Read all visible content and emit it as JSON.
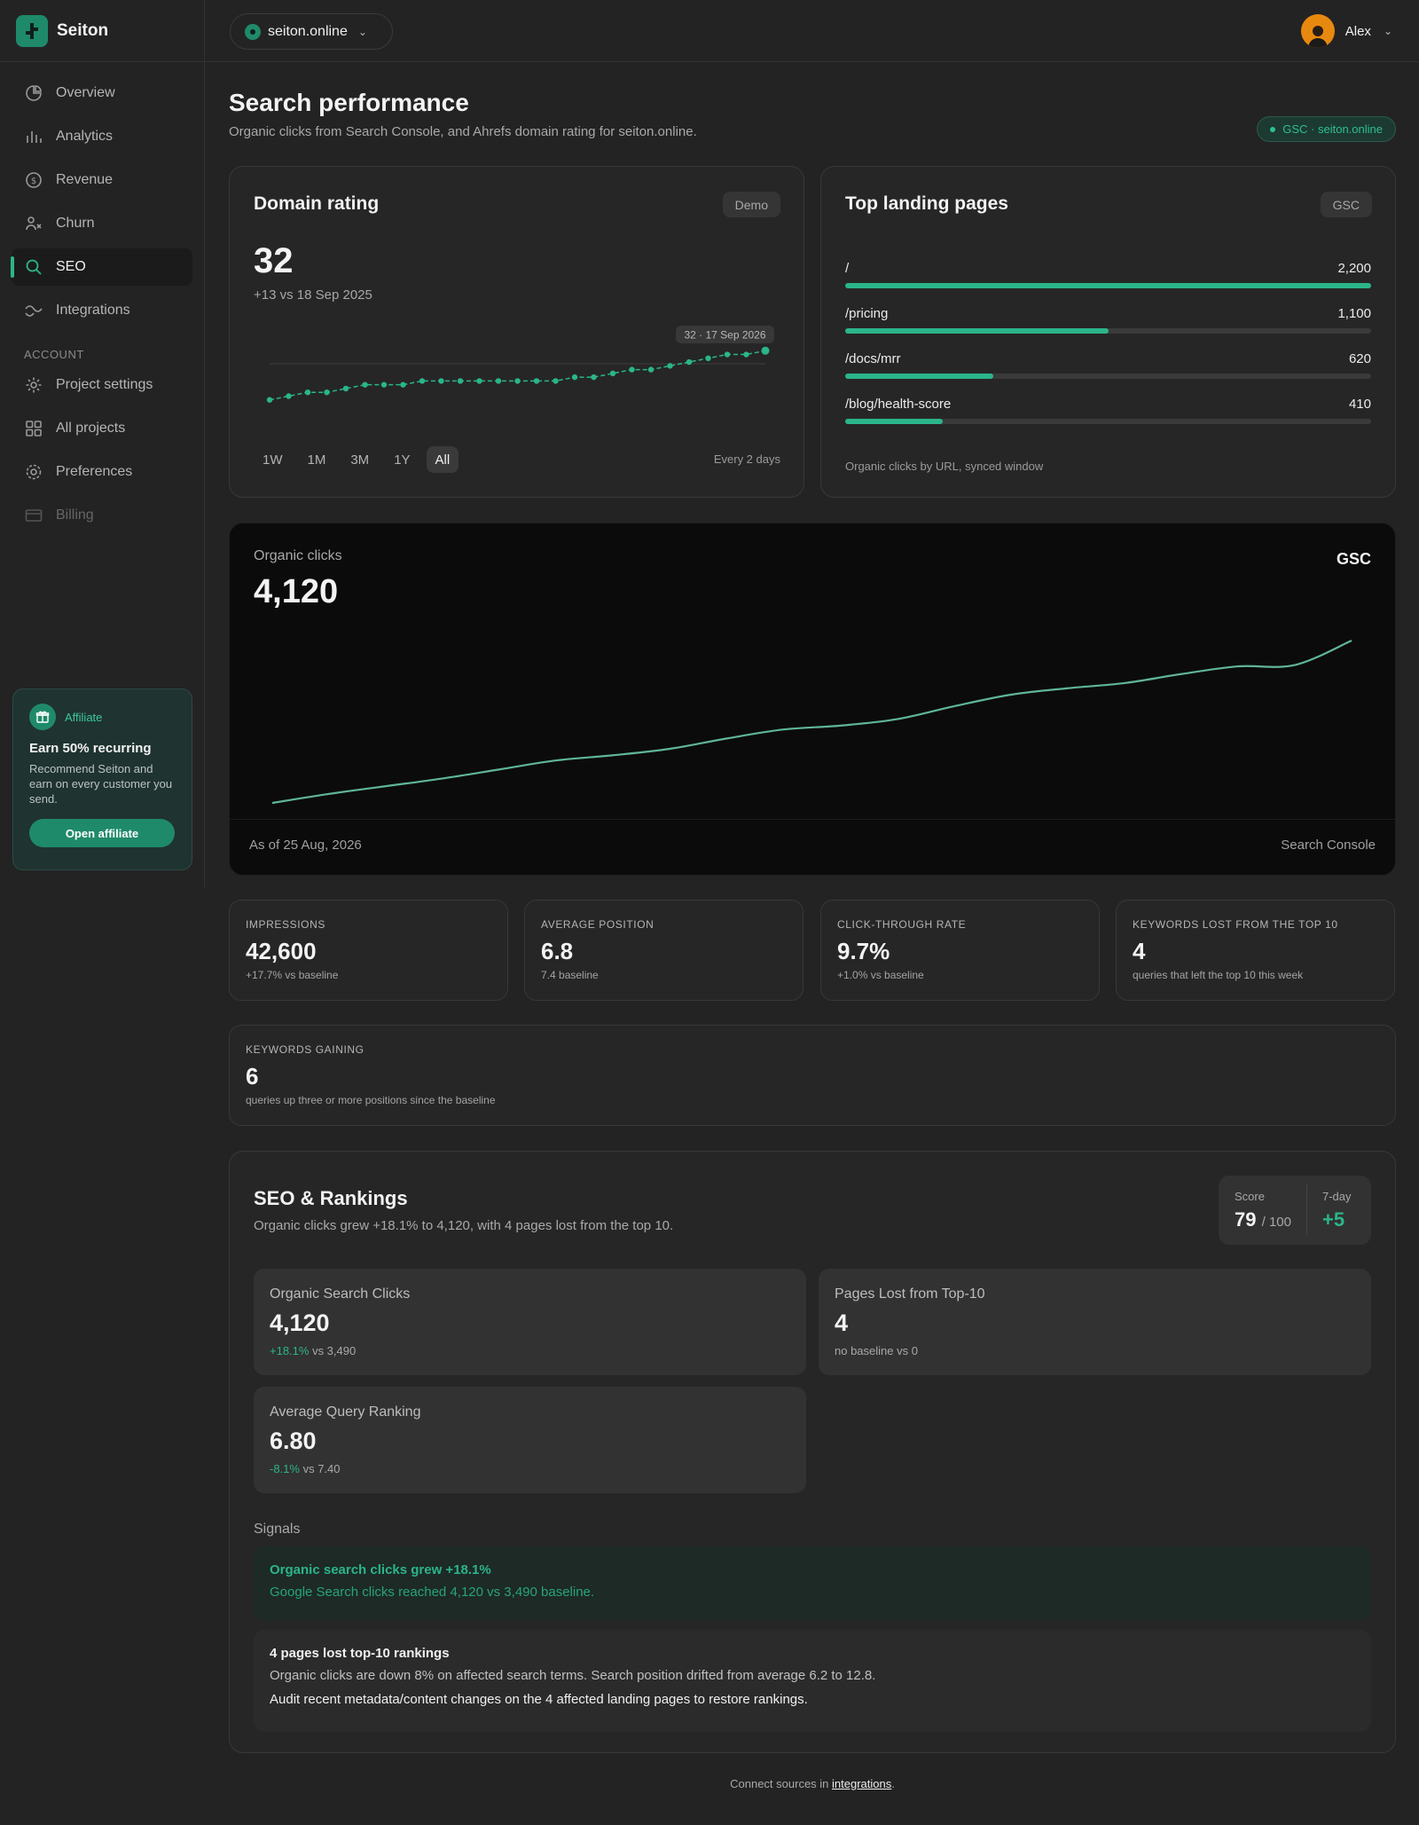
{
  "brand": {
    "name": "Seiton"
  },
  "nav": {
    "items": [
      {
        "label": "Overview"
      },
      {
        "label": "Analytics"
      },
      {
        "label": "Revenue"
      },
      {
        "label": "Churn"
      },
      {
        "label": "SEO"
      },
      {
        "label": "Integrations"
      }
    ],
    "account_section": "ACCOUNT",
    "account_items": [
      {
        "label": "Project settings"
      },
      {
        "label": "All projects"
      },
      {
        "label": "Preferences"
      },
      {
        "label": "Billing"
      }
    ]
  },
  "affiliate": {
    "tag": "Affiliate",
    "title": "Earn 50% recurring",
    "description": "Recommend Seiton and earn on every customer you send.",
    "button": "Open affiliate"
  },
  "topbar": {
    "site": "seiton.online",
    "user": "Alex"
  },
  "page": {
    "title": "Search performance",
    "subtitle": "Organic clicks from Search Console, and Ahrefs domain rating for seiton.online.",
    "badge": "GSC · seiton.online"
  },
  "domain_rating": {
    "title": "Domain rating",
    "tag": "Demo",
    "value": "32",
    "delta": "+13 vs 18 Sep 2025",
    "tooltip": "32 · 17 Sep 2026",
    "ranges": [
      "1W",
      "1M",
      "3M",
      "1Y",
      "All"
    ],
    "active_range": "All",
    "frequency": "Every 2 days",
    "series": [
      19,
      20,
      21,
      21,
      22,
      23,
      23,
      23,
      24,
      24,
      24,
      24,
      24,
      24,
      24,
      24,
      25,
      25,
      26,
      27,
      27,
      28,
      29,
      30,
      31,
      31,
      32
    ]
  },
  "landing_pages": {
    "title": "Top landing pages",
    "tag": "GSC",
    "rows": [
      {
        "path": "/",
        "value": "2,200",
        "share": 1.0
      },
      {
        "path": "/pricing",
        "value": "1,100",
        "share": 0.5
      },
      {
        "path": "/docs/mrr",
        "value": "620",
        "share": 0.282
      },
      {
        "path": "/blog/health-score",
        "value": "410",
        "share": 0.186
      }
    ],
    "footer": "Organic clicks by URL, synced window"
  },
  "organic_clicks": {
    "label": "Organic clicks",
    "value": "4,120",
    "source": "GSC",
    "as_of": "As of 25 Aug, 2026",
    "footer_source": "Search Console",
    "series": [
      3490,
      3525,
      3555,
      3585,
      3620,
      3655,
      3675,
      3700,
      3740,
      3775,
      3790,
      3815,
      3865,
      3910,
      3935,
      3955,
      3990,
      4020,
      4025,
      4120
    ]
  },
  "kpis": [
    {
      "label": "IMPRESSIONS",
      "value": "42,600",
      "sub": "+17.7% vs baseline"
    },
    {
      "label": "AVERAGE POSITION",
      "value": "6.8",
      "sub": "7.4 baseline"
    },
    {
      "label": "CLICK-THROUGH RATE",
      "value": "9.7%",
      "sub": "+1.0% vs baseline"
    },
    {
      "label": "KEYWORDS LOST FROM THE TOP 10",
      "value": "4",
      "sub": "queries that left the top 10 this week"
    },
    {
      "label": "KEYWORDS GAINING",
      "value": "6",
      "sub": "queries up three or more positions since the baseline"
    }
  ],
  "seo": {
    "title": "SEO & Rankings",
    "subtitle": "Organic clicks grew +18.1% to 4,120, with 4 pages lost from the top 10.",
    "score_label": "Score",
    "score_value": "79",
    "score_max": "/ 100",
    "week_label": "7-day",
    "week_value": "+5",
    "metrics": [
      {
        "label": "Organic Search Clicks",
        "value": "4,120",
        "delta": "+18.1%",
        "rest": " vs 3,490"
      },
      {
        "label": "Pages Lost from Top-10",
        "value": "4",
        "delta": "",
        "rest": "no baseline vs 0"
      },
      {
        "label": "Average Query Ranking",
        "value": "6.80",
        "delta": "-8.1%",
        "rest": " vs 7.40"
      }
    ],
    "signals_label": "Signals",
    "signal_good": {
      "title": "Organic search clicks grew +18.1%",
      "text": "Google Search clicks reached 4,120 vs 3,490 baseline."
    },
    "signal_bad": {
      "title": "4 pages lost top-10 rankings",
      "text": "Organic clicks are down 8% on affected search terms. Search position drifted from average 6.2 to 12.8.",
      "action": "Audit recent metadata/content changes on the 4 affected landing pages to restore rankings."
    }
  },
  "footer": {
    "prefix": "Connect sources in ",
    "link": "integrations",
    "suffix": "."
  },
  "colors": {
    "accent": "#2bb58a",
    "background": "#232323",
    "card": "#262626"
  }
}
